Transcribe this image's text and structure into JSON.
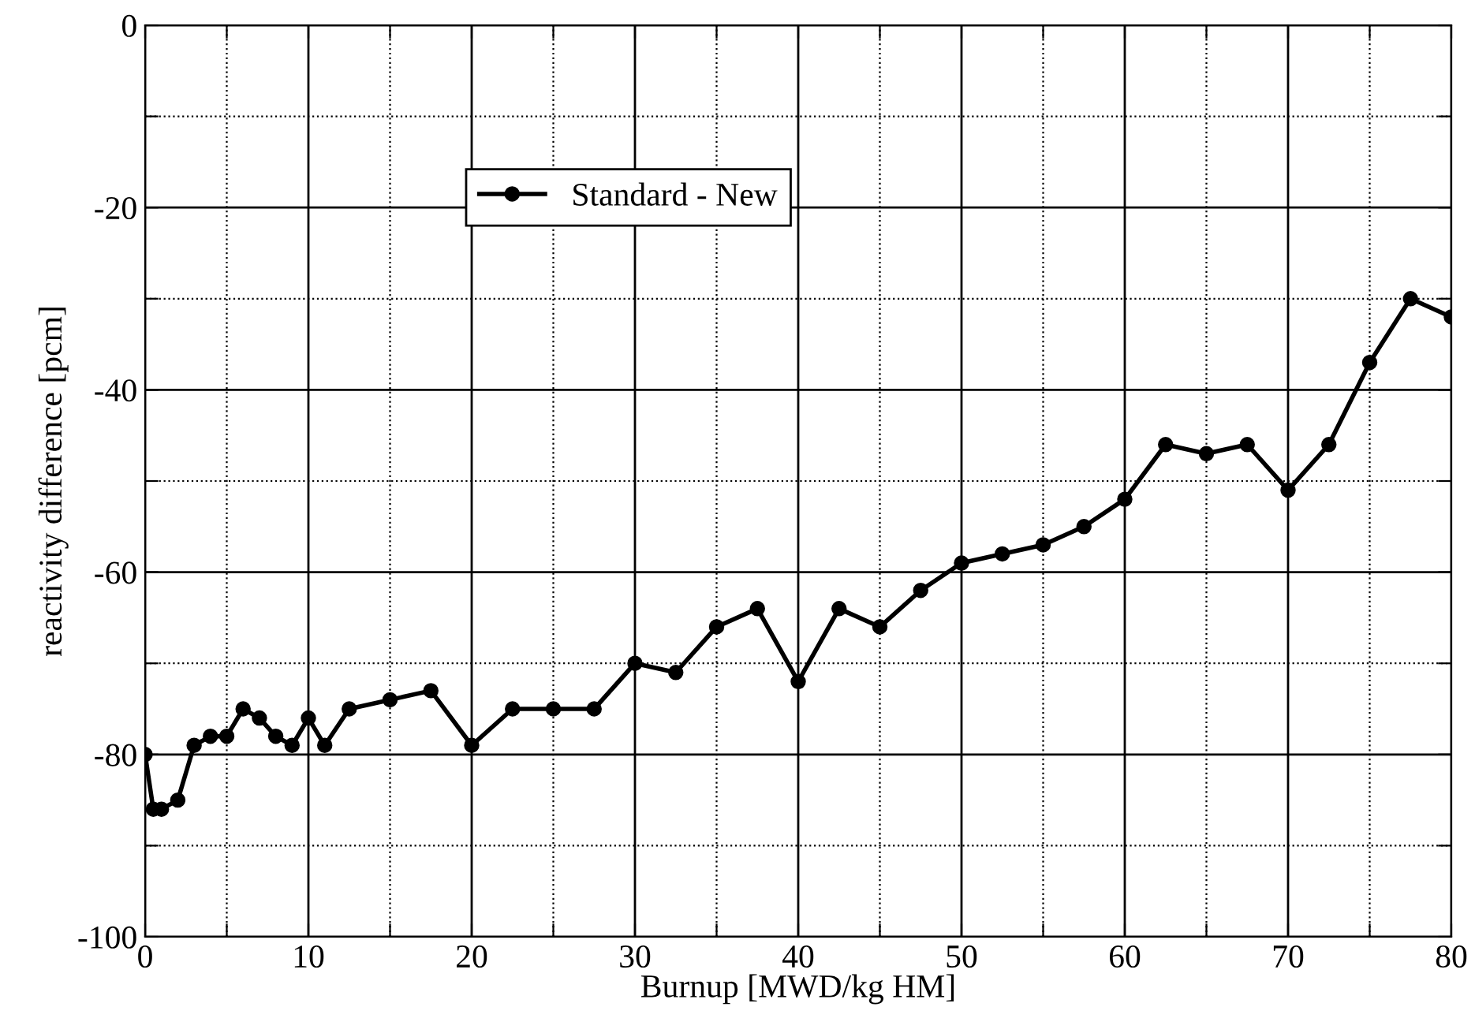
{
  "chart_data": {
    "type": "line",
    "xlabel": "Burnup [MWD/kg HM]",
    "ylabel": "reactivity difference [pcm]",
    "x": [
      0,
      0.5,
      1,
      2,
      3,
      4,
      5,
      6,
      7,
      8,
      9,
      10,
      11,
      12.5,
      15,
      17.5,
      20,
      22.5,
      25,
      27.5,
      30,
      32.5,
      35,
      37.5,
      40,
      42.5,
      45,
      47.5,
      50,
      52.5,
      55,
      57.5,
      60,
      62.5,
      65,
      67.5,
      70,
      72.5,
      75,
      77.5,
      80
    ],
    "series": [
      {
        "name": "Standard - New",
        "color": "#000000",
        "values": [
          -80,
          -86,
          -86,
          -85,
          -79,
          -78,
          -78,
          -75,
          -76,
          -78,
          -79,
          -76,
          -79,
          -75,
          -74,
          -73,
          -79,
          -75,
          -75,
          -75,
          -70,
          -71,
          -66,
          -64,
          -72,
          -64,
          -66,
          -62,
          -59,
          -58,
          -57,
          -55,
          -52,
          -46,
          -47,
          -46,
          -51,
          -46,
          -37,
          -30,
          -32
        ]
      }
    ],
    "xlim": [
      0,
      80
    ],
    "ylim": [
      -100,
      0
    ],
    "xticks": [
      0,
      {
        "value": 5,
        "label": null
      },
      10,
      {
        "value": 15,
        "label": null
      },
      20,
      {
        "value": 25,
        "label": null
      },
      30,
      {
        "value": 35,
        "label": null
      },
      40,
      {
        "value": 45,
        "label": null
      },
      50,
      {
        "value": 55,
        "label": null
      },
      60,
      {
        "value": 65,
        "label": null
      },
      70,
      {
        "value": 75,
        "label": null
      },
      80
    ],
    "yticks": [
      -100,
      {
        "value": -90,
        "label": null
      },
      -80,
      {
        "value": -70,
        "label": null
      },
      -60,
      {
        "value": -50,
        "label": null
      },
      -40,
      {
        "value": -30,
        "label": null
      },
      -20,
      {
        "value": -10,
        "label": null
      },
      0
    ],
    "grid": true,
    "legend": "top",
    "marker": "circle",
    "line_style": "solid"
  }
}
